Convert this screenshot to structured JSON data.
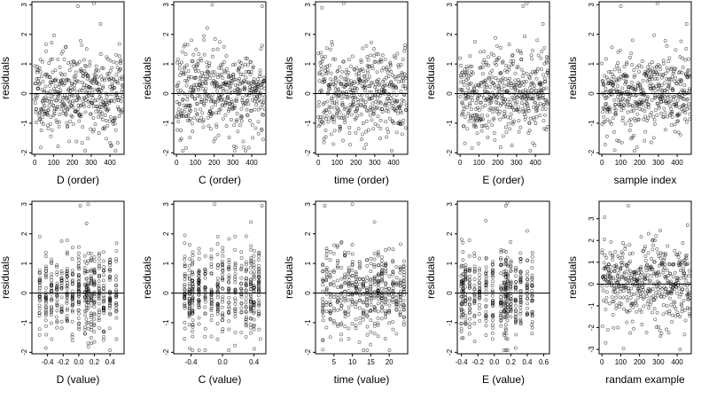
{
  "chart_data": [
    {
      "type": "scatter",
      "id": "D-order",
      "xlabel": "D (order)",
      "ylabel": "residuals",
      "xlim": [
        -15,
        475
      ],
      "ylim": [
        -2.05,
        3.1
      ],
      "xticks": [
        0,
        100,
        200,
        300,
        400
      ],
      "yticks": [
        -2,
        -1,
        0,
        1,
        2,
        3
      ],
      "reference_line_y": 0,
      "pattern": "index",
      "n": 470,
      "seed": 11,
      "highlights": [
        {
          "x": 230,
          "y": 2.95
        },
        {
          "x": 315,
          "y": 3.05
        },
        {
          "x": 350,
          "y": 2.35
        },
        {
          "x": 410,
          "y": -1.75
        }
      ]
    },
    {
      "type": "scatter",
      "id": "C-order",
      "xlabel": "C (order)",
      "ylabel": "residuals",
      "xlim": [
        -15,
        475
      ],
      "ylim": [
        -2.05,
        3.1
      ],
      "xticks": [
        0,
        100,
        200,
        300,
        400
      ],
      "yticks": [
        -2,
        -1,
        0,
        1,
        2,
        3
      ],
      "reference_line_y": 0,
      "pattern": "index",
      "n": 470,
      "seed": 23,
      "highlights": [
        {
          "x": 190,
          "y": 3.0
        },
        {
          "x": 455,
          "y": 2.95
        },
        {
          "x": 145,
          "y": 1.95
        },
        {
          "x": 460,
          "y": -1.55
        }
      ]
    },
    {
      "type": "scatter",
      "id": "time-order",
      "xlabel": "time (order)",
      "ylabel": "residuals",
      "xlim": [
        -15,
        475
      ],
      "ylim": [
        -2.05,
        3.1
      ],
      "xticks": [
        0,
        100,
        200,
        300,
        400
      ],
      "yticks": [
        -2,
        -1,
        0,
        1,
        2,
        3
      ],
      "reference_line_y": 0,
      "pattern": "index",
      "n": 470,
      "seed": 37,
      "highlights": [
        {
          "x": 20,
          "y": 2.9
        },
        {
          "x": 135,
          "y": 3.05
        },
        {
          "x": 30,
          "y": -1.65
        },
        {
          "x": 245,
          "y": -1.85
        }
      ]
    },
    {
      "type": "scatter",
      "id": "E-order",
      "xlabel": "E (order)",
      "ylabel": "residuals",
      "xlim": [
        -15,
        475
      ],
      "ylim": [
        -2.05,
        3.1
      ],
      "xticks": [
        0,
        100,
        200,
        300,
        400
      ],
      "yticks": [
        -2,
        -1,
        0,
        1,
        2,
        3
      ],
      "reference_line_y": 0,
      "pattern": "index",
      "n": 470,
      "seed": 41,
      "highlights": [
        {
          "x": 335,
          "y": 2.95
        },
        {
          "x": 355,
          "y": 3.05
        },
        {
          "x": 440,
          "y": 2.35
        },
        {
          "x": 275,
          "y": -1.75
        }
      ]
    },
    {
      "type": "scatter",
      "id": "sample-index",
      "xlabel": "sample index",
      "ylabel": "residuals",
      "xlim": [
        -15,
        475
      ],
      "ylim": [
        -2.05,
        3.1
      ],
      "xticks": [
        0,
        100,
        200,
        300,
        400
      ],
      "yticks": [
        -2,
        -1,
        0,
        1,
        2,
        3
      ],
      "reference_line_y": 0,
      "pattern": "index",
      "n": 470,
      "seed": 53,
      "highlights": [
        {
          "x": 100,
          "y": 2.95
        },
        {
          "x": 295,
          "y": 3.05
        },
        {
          "x": 450,
          "y": 2.35
        },
        {
          "x": 90,
          "y": -1.6
        }
      ]
    },
    {
      "type": "scatter",
      "id": "D-value",
      "xlabel": "D (value)",
      "ylabel": "residuals",
      "xlim": [
        -0.6,
        0.58
      ],
      "ylim": [
        -2.05,
        3.1
      ],
      "xticks": [
        -0.4,
        -0.2,
        0.0,
        0.2,
        0.4
      ],
      "yticks": [
        -2,
        -1,
        0,
        1,
        2,
        3
      ],
      "reference_line_y": 0,
      "pattern": "columns",
      "columns": [
        -0.5,
        -0.42,
        -0.35,
        -0.28,
        -0.22,
        -0.15,
        -0.08,
        0.0,
        0.08,
        0.1,
        0.12,
        0.16,
        0.2,
        0.26,
        0.32,
        0.4,
        0.48
      ],
      "n": 470,
      "seed": 61,
      "highlights": [
        {
          "x": 0.02,
          "y": 2.95
        },
        {
          "x": 0.12,
          "y": 3.0
        },
        {
          "x": 0.1,
          "y": 2.35
        },
        {
          "x": 0.2,
          "y": -1.65
        }
      ]
    },
    {
      "type": "scatter",
      "id": "C-value",
      "xlabel": "C (value)",
      "ylabel": "residuals",
      "xlim": [
        -0.62,
        0.55
      ],
      "ylim": [
        -2.05,
        3.1
      ],
      "xticks": [
        -0.4,
        0.0,
        0.4
      ],
      "yticks": [
        -2,
        -1,
        0,
        1,
        2,
        3
      ],
      "reference_line_y": 0,
      "pattern": "columns",
      "columns": [
        -0.48,
        -0.42,
        -0.38,
        -0.3,
        -0.22,
        -0.14,
        -0.06,
        0.0,
        0.08,
        0.16,
        0.24,
        0.3,
        0.36,
        0.4,
        0.46
      ],
      "n": 470,
      "seed": 67,
      "highlights": [
        {
          "x": -0.1,
          "y": 3.0
        },
        {
          "x": 0.5,
          "y": 2.95
        },
        {
          "x": 0.36,
          "y": 2.4
        },
        {
          "x": 0.48,
          "y": -1.55
        }
      ]
    },
    {
      "type": "scatter",
      "id": "time-value",
      "xlabel": "time (value)",
      "ylabel": "residuals",
      "xlim": [
        0,
        25
      ],
      "ylim": [
        -2.05,
        3.1
      ],
      "xticks": [
        5,
        10,
        15,
        20
      ],
      "yticks": [
        -2,
        -1,
        0,
        1,
        2,
        3
      ],
      "reference_line_y": 0,
      "pattern": "columns",
      "columns": [
        2,
        3,
        4,
        5,
        6,
        7,
        8,
        9,
        10,
        11,
        12,
        13,
        14,
        15,
        16,
        17,
        18,
        19,
        20,
        21,
        22,
        23,
        24
      ],
      "n": 470,
      "seed": 71,
      "highlights": [
        {
          "x": 2.5,
          "y": 2.95
        },
        {
          "x": 10,
          "y": 3.0
        },
        {
          "x": 16,
          "y": 2.4
        },
        {
          "x": 2,
          "y": -1.6
        }
      ]
    },
    {
      "type": "scatter",
      "id": "E-value",
      "xlabel": "E (value)",
      "ylabel": "residuals",
      "xlim": [
        -0.45,
        0.67
      ],
      "ylim": [
        -2.05,
        3.1
      ],
      "xticks": [
        -0.4,
        -0.2,
        0.0,
        0.2,
        0.4,
        0.6
      ],
      "yticks": [
        -2,
        -1,
        0,
        1,
        2,
        3
      ],
      "reference_line_y": 0,
      "pattern": "columns",
      "columns": [
        -0.4,
        -0.38,
        -0.35,
        -0.3,
        -0.24,
        -0.18,
        -0.1,
        -0.02,
        0.08,
        0.12,
        0.14,
        0.16,
        0.2,
        0.26,
        0.32,
        0.4,
        0.46
      ],
      "n": 470,
      "seed": 83,
      "highlights": [
        {
          "x": 0.14,
          "y": 2.95
        },
        {
          "x": 0.16,
          "y": 3.05
        },
        {
          "x": 0.4,
          "y": 2.1
        },
        {
          "x": 0.16,
          "y": -1.55
        }
      ]
    },
    {
      "type": "scatter",
      "id": "random-example",
      "xlabel": "randam example",
      "ylabel": "residuals",
      "xlim": [
        -15,
        475
      ],
      "ylim": [
        -3.2,
        3.8
      ],
      "xticks": [
        0,
        100,
        200,
        300,
        400
      ],
      "yticks": [
        -3,
        -2,
        -1,
        0,
        1,
        2,
        3
      ],
      "reference_line_y": 0,
      "pattern": "index",
      "sd": 1.0,
      "n": 470,
      "seed": 97,
      "highlights": [
        {
          "x": 140,
          "y": 3.6
        },
        {
          "x": 455,
          "y": 2.7
        },
        {
          "x": 20,
          "y": -2.7
        },
        {
          "x": 415,
          "y": -3.0
        }
      ]
    }
  ]
}
